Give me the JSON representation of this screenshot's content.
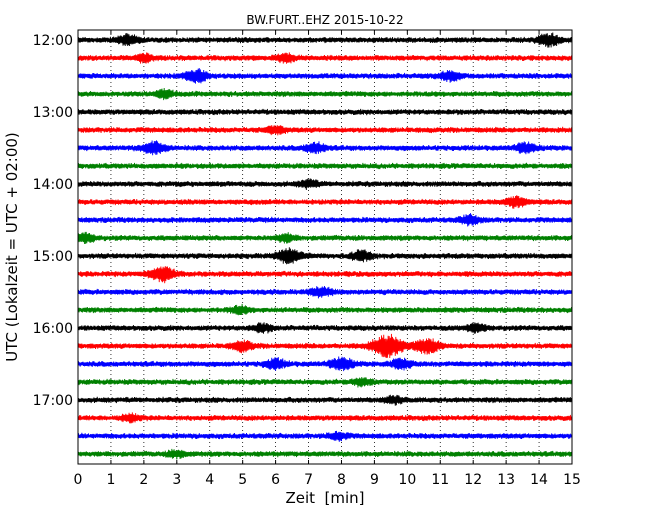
{
  "chart_data": {
    "type": "line",
    "title": "BW.FURT..EHZ 2015-10-22",
    "xlabel": "Zeit  [min]",
    "ylabel": "UTC (Lokalzeit = UTC + 02:00)",
    "xlim": [
      0,
      15
    ],
    "x_ticks": [
      "0",
      "1",
      "2",
      "3",
      "4",
      "5",
      "6",
      "7",
      "8",
      "9",
      "10",
      "11",
      "12",
      "13",
      "14",
      "15"
    ],
    "y_ticks": [
      "12:00",
      "13:00",
      "14:00",
      "15:00",
      "16:00",
      "17:00"
    ],
    "grid": true,
    "trace_interval_min": 15,
    "colors": [
      "#000000",
      "#ff0000",
      "#0000ff",
      "#008000"
    ],
    "traces": [
      {
        "start": "12:00",
        "color": "#000000",
        "events": [
          {
            "t": 1.5,
            "a": 2.0
          },
          {
            "t": 14.3,
            "a": 2.5
          }
        ]
      },
      {
        "start": "12:15",
        "color": "#ff0000",
        "events": [
          {
            "t": 2.0,
            "a": 1.5
          },
          {
            "t": 6.3,
            "a": 1.5
          }
        ]
      },
      {
        "start": "12:30",
        "color": "#0000ff",
        "events": [
          {
            "t": 3.6,
            "a": 2.5
          },
          {
            "t": 11.3,
            "a": 2.0
          }
        ]
      },
      {
        "start": "12:45",
        "color": "#008000",
        "events": [
          {
            "t": 2.6,
            "a": 1.5
          }
        ]
      },
      {
        "start": "13:00",
        "color": "#000000",
        "events": []
      },
      {
        "start": "13:15",
        "color": "#ff0000",
        "events": [
          {
            "t": 6.0,
            "a": 1.5
          }
        ]
      },
      {
        "start": "13:30",
        "color": "#0000ff",
        "events": [
          {
            "t": 2.3,
            "a": 2.5
          },
          {
            "t": 7.2,
            "a": 2.0
          },
          {
            "t": 13.6,
            "a": 2.0
          }
        ]
      },
      {
        "start": "13:45",
        "color": "#008000",
        "events": []
      },
      {
        "start": "14:00",
        "color": "#000000",
        "events": [
          {
            "t": 7.0,
            "a": 1.5
          }
        ]
      },
      {
        "start": "14:15",
        "color": "#ff0000",
        "events": [
          {
            "t": 13.3,
            "a": 2.0
          }
        ]
      },
      {
        "start": "14:30",
        "color": "#0000ff",
        "events": [
          {
            "t": 11.9,
            "a": 1.8
          }
        ]
      },
      {
        "start": "14:45",
        "color": "#008000",
        "events": [
          {
            "t": 0.2,
            "a": 1.8
          },
          {
            "t": 6.3,
            "a": 1.5
          }
        ]
      },
      {
        "start": "15:00",
        "color": "#000000",
        "events": [
          {
            "t": 6.4,
            "a": 3.0
          },
          {
            "t": 8.6,
            "a": 2.0
          }
        ]
      },
      {
        "start": "15:15",
        "color": "#ff0000",
        "events": [
          {
            "t": 2.55,
            "a": 3.0
          }
        ]
      },
      {
        "start": "15:30",
        "color": "#0000ff",
        "events": [
          {
            "t": 7.4,
            "a": 2.0
          }
        ]
      },
      {
        "start": "15:45",
        "color": "#008000",
        "events": [
          {
            "t": 4.9,
            "a": 1.5
          }
        ]
      },
      {
        "start": "16:00",
        "color": "#000000",
        "events": [
          {
            "t": 5.6,
            "a": 1.6
          },
          {
            "t": 12.1,
            "a": 1.6
          }
        ]
      },
      {
        "start": "16:15",
        "color": "#ff0000",
        "events": [
          {
            "t": 5.0,
            "a": 2.0
          },
          {
            "t": 9.4,
            "a": 4.5
          },
          {
            "t": 10.6,
            "a": 3.0
          }
        ]
      },
      {
        "start": "16:30",
        "color": "#0000ff",
        "events": [
          {
            "t": 6.0,
            "a": 2.0
          },
          {
            "t": 8.0,
            "a": 2.5
          },
          {
            "t": 9.8,
            "a": 2.0
          }
        ]
      },
      {
        "start": "16:45",
        "color": "#008000",
        "events": [
          {
            "t": 8.6,
            "a": 1.5
          }
        ]
      },
      {
        "start": "17:00",
        "color": "#000000",
        "events": [
          {
            "t": 9.6,
            "a": 1.5
          }
        ]
      },
      {
        "start": "17:15",
        "color": "#ff0000",
        "events": [
          {
            "t": 1.6,
            "a": 1.5
          }
        ]
      },
      {
        "start": "17:30",
        "color": "#0000ff",
        "events": [
          {
            "t": 7.9,
            "a": 1.5
          }
        ]
      },
      {
        "start": "17:45",
        "color": "#008000",
        "events": [
          {
            "t": 3.0,
            "a": 1.4
          }
        ]
      }
    ]
  }
}
